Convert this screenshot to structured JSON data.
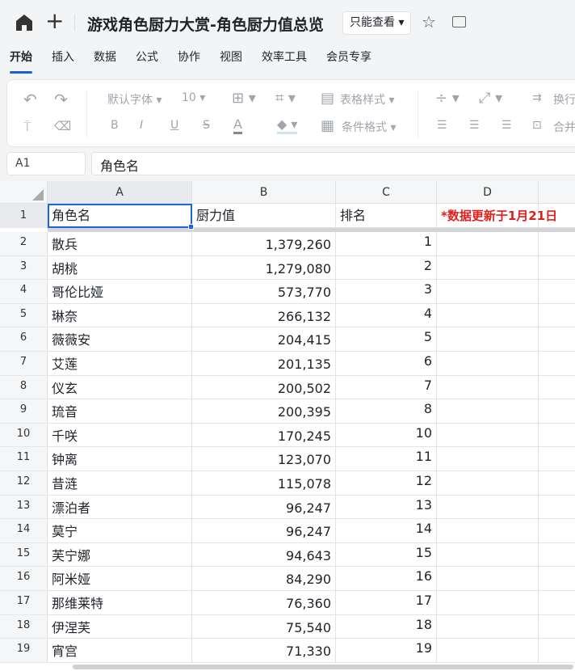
{
  "header": {
    "title": "游戏角色厨力大赏-角色厨力值总览",
    "permission": "只能查看 ▾",
    "home_icon": "home-icon",
    "add_icon": "plus-icon",
    "star_icon": "star-icon",
    "folder_icon": "folder-icon"
  },
  "menu": [
    "开始",
    "插入",
    "数据",
    "公式",
    "协作",
    "视图",
    "效率工具",
    "会员专享"
  ],
  "toolbar": {
    "font": "默认字体 ▾",
    "size": "10 ▾",
    "table_style": "表格样式 ▾",
    "cond_format": "条件格式 ▾",
    "wrap": "换行",
    "merge": "合并",
    "bold": "B",
    "italic": "I",
    "underline": "U",
    "strike": "S",
    "font_color": "A"
  },
  "formula": {
    "cell_ref": "A1",
    "value": "角色名"
  },
  "columns": [
    "A",
    "B",
    "C",
    "D"
  ],
  "header_row": {
    "a": "角色名",
    "b": "厨力值",
    "c": "排名",
    "d": "*数据更新于1月21日"
  },
  "rows": [
    [
      "散兵",
      "1,379,260",
      "1"
    ],
    [
      "胡桃",
      "1,279,080",
      "2"
    ],
    [
      "哥伦比娅",
      "573,770",
      "3"
    ],
    [
      "琳奈",
      "266,132",
      "4"
    ],
    [
      "薇薇安",
      "204,415",
      "5"
    ],
    [
      "艾莲",
      "201,135",
      "6"
    ],
    [
      "仪玄",
      "200,502",
      "7"
    ],
    [
      "琉音",
      "200,395",
      "8"
    ],
    [
      "千咲",
      "170,245",
      "10"
    ],
    [
      "钟离",
      "123,070",
      "11"
    ],
    [
      "昔涟",
      "115,078",
      "12"
    ],
    [
      "漂泊者",
      "96,247",
      "13"
    ],
    [
      "莫宁",
      "96,247",
      "14"
    ],
    [
      "芙宁娜",
      "94,643",
      "15"
    ],
    [
      "阿米娅",
      "84,290",
      "16"
    ],
    [
      "那维莱特",
      "76,360",
      "17"
    ],
    [
      "伊涅芙",
      "75,540",
      "18"
    ],
    [
      "宵宫",
      "71,330",
      "19"
    ]
  ],
  "colors": {
    "accent": "#1a66e0",
    "note": "#e0201c"
  }
}
